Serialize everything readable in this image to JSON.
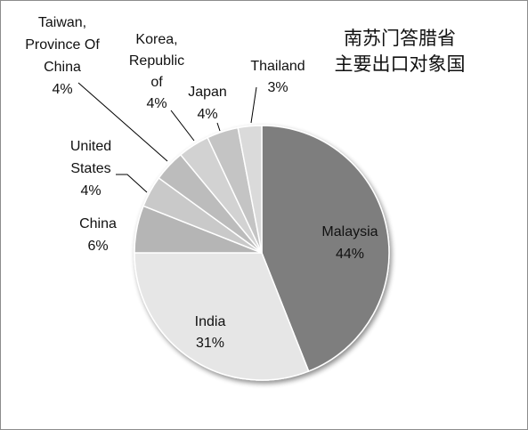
{
  "chart_data": {
    "type": "pie",
    "title_lines": [
      "南苏门答腊省",
      "主要出口对象国"
    ],
    "slices": [
      {
        "label": "Malaysia",
        "value": 44,
        "display": "44%",
        "color": "#7e7e7e"
      },
      {
        "label": "India",
        "value": 31,
        "display": "31%",
        "color": "#e6e6e6"
      },
      {
        "label": "China",
        "value": 6,
        "display": "6%",
        "color": "#b5b5b5"
      },
      {
        "label": "United States",
        "value": 4,
        "display": "4%",
        "color": "#c9c9c9"
      },
      {
        "label": "Taiwan, Province Of China",
        "value": 4,
        "display": "4%",
        "color": "#bcbcbc"
      },
      {
        "label": "Korea, Republic of",
        "value": 4,
        "display": "4%",
        "color": "#d2d2d2"
      },
      {
        "label": "Japan",
        "value": 4,
        "display": "4%",
        "color": "#c4c4c4"
      },
      {
        "label": "Thailand",
        "value": 3,
        "display": "3%",
        "color": "#dadada"
      }
    ],
    "legend": "none"
  }
}
